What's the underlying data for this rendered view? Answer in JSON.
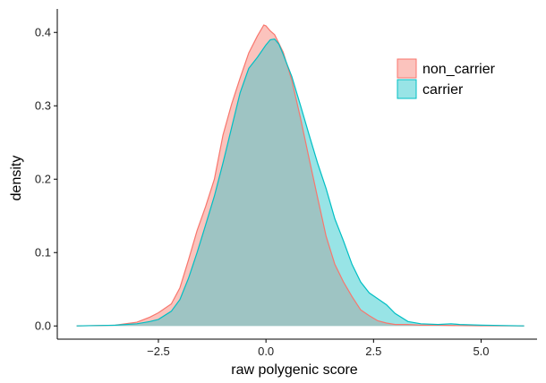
{
  "chart_data": {
    "type": "area",
    "title": "",
    "xlabel": "raw polygenic score",
    "ylabel": "density",
    "xlim": [
      -4.85,
      6.3
    ],
    "ylim": [
      -0.018,
      0.432
    ],
    "x_ticks": [
      -2.5,
      0.0,
      2.5,
      5.0
    ],
    "x_tick_labels": [
      "−2.5",
      "0.0",
      "2.5",
      "5.0"
    ],
    "y_ticks": [
      0.0,
      0.1,
      0.2,
      0.3,
      0.4
    ],
    "y_tick_labels": [
      "0.0",
      "0.1",
      "0.2",
      "0.3",
      "0.4"
    ],
    "grid": false,
    "legend_position": "top-right",
    "overlap_color": "#9ec4c3",
    "series": [
      {
        "name": "non_carrier",
        "fill": "#f8766d",
        "stroke": "#f8766d",
        "legend_fill": "#fbc3bd",
        "x": [
          -4.4,
          -3.5,
          -3.0,
          -2.7,
          -2.5,
          -2.2,
          -2.0,
          -1.8,
          -1.6,
          -1.4,
          -1.2,
          -1.0,
          -0.8,
          -0.6,
          -0.4,
          -0.2,
          -0.05,
          0.0,
          0.1,
          0.2,
          0.3,
          0.4,
          0.6,
          0.8,
          1.0,
          1.2,
          1.4,
          1.6,
          1.8,
          2.0,
          2.2,
          2.4,
          2.6,
          2.8,
          3.0,
          3.3,
          3.6,
          4.0,
          4.5,
          5.0,
          6.0
        ],
        "y": [
          0.0,
          0.001,
          0.005,
          0.012,
          0.018,
          0.03,
          0.052,
          0.09,
          0.13,
          0.163,
          0.2,
          0.26,
          0.302,
          0.338,
          0.372,
          0.395,
          0.41,
          0.409,
          0.402,
          0.397,
          0.385,
          0.373,
          0.335,
          0.284,
          0.229,
          0.175,
          0.122,
          0.084,
          0.06,
          0.04,
          0.022,
          0.014,
          0.007,
          0.004,
          0.002,
          0.002,
          0.001,
          0.001,
          0.0005,
          0.0003,
          0.0
        ]
      },
      {
        "name": "carrier",
        "fill": "#00bfc4",
        "stroke": "#00bfc4",
        "legend_fill": "#98e4e6",
        "x": [
          -4.4,
          -3.5,
          -3.0,
          -2.7,
          -2.5,
          -2.2,
          -2.0,
          -1.8,
          -1.6,
          -1.4,
          -1.2,
          -1.0,
          -0.8,
          -0.6,
          -0.4,
          -0.2,
          0.0,
          0.1,
          0.2,
          0.3,
          0.4,
          0.6,
          0.8,
          1.0,
          1.2,
          1.4,
          1.6,
          1.8,
          2.0,
          2.2,
          2.4,
          2.6,
          2.8,
          3.0,
          3.3,
          3.6,
          4.0,
          4.3,
          4.5,
          5.0,
          6.0
        ],
        "y": [
          0.0,
          0.001,
          0.003,
          0.006,
          0.009,
          0.02,
          0.036,
          0.065,
          0.1,
          0.138,
          0.177,
          0.222,
          0.27,
          0.318,
          0.351,
          0.366,
          0.383,
          0.39,
          0.391,
          0.384,
          0.37,
          0.34,
          0.301,
          0.261,
          0.222,
          0.187,
          0.146,
          0.116,
          0.084,
          0.06,
          0.045,
          0.037,
          0.029,
          0.017,
          0.006,
          0.003,
          0.002,
          0.003,
          0.002,
          0.001,
          0.0
        ]
      }
    ]
  }
}
